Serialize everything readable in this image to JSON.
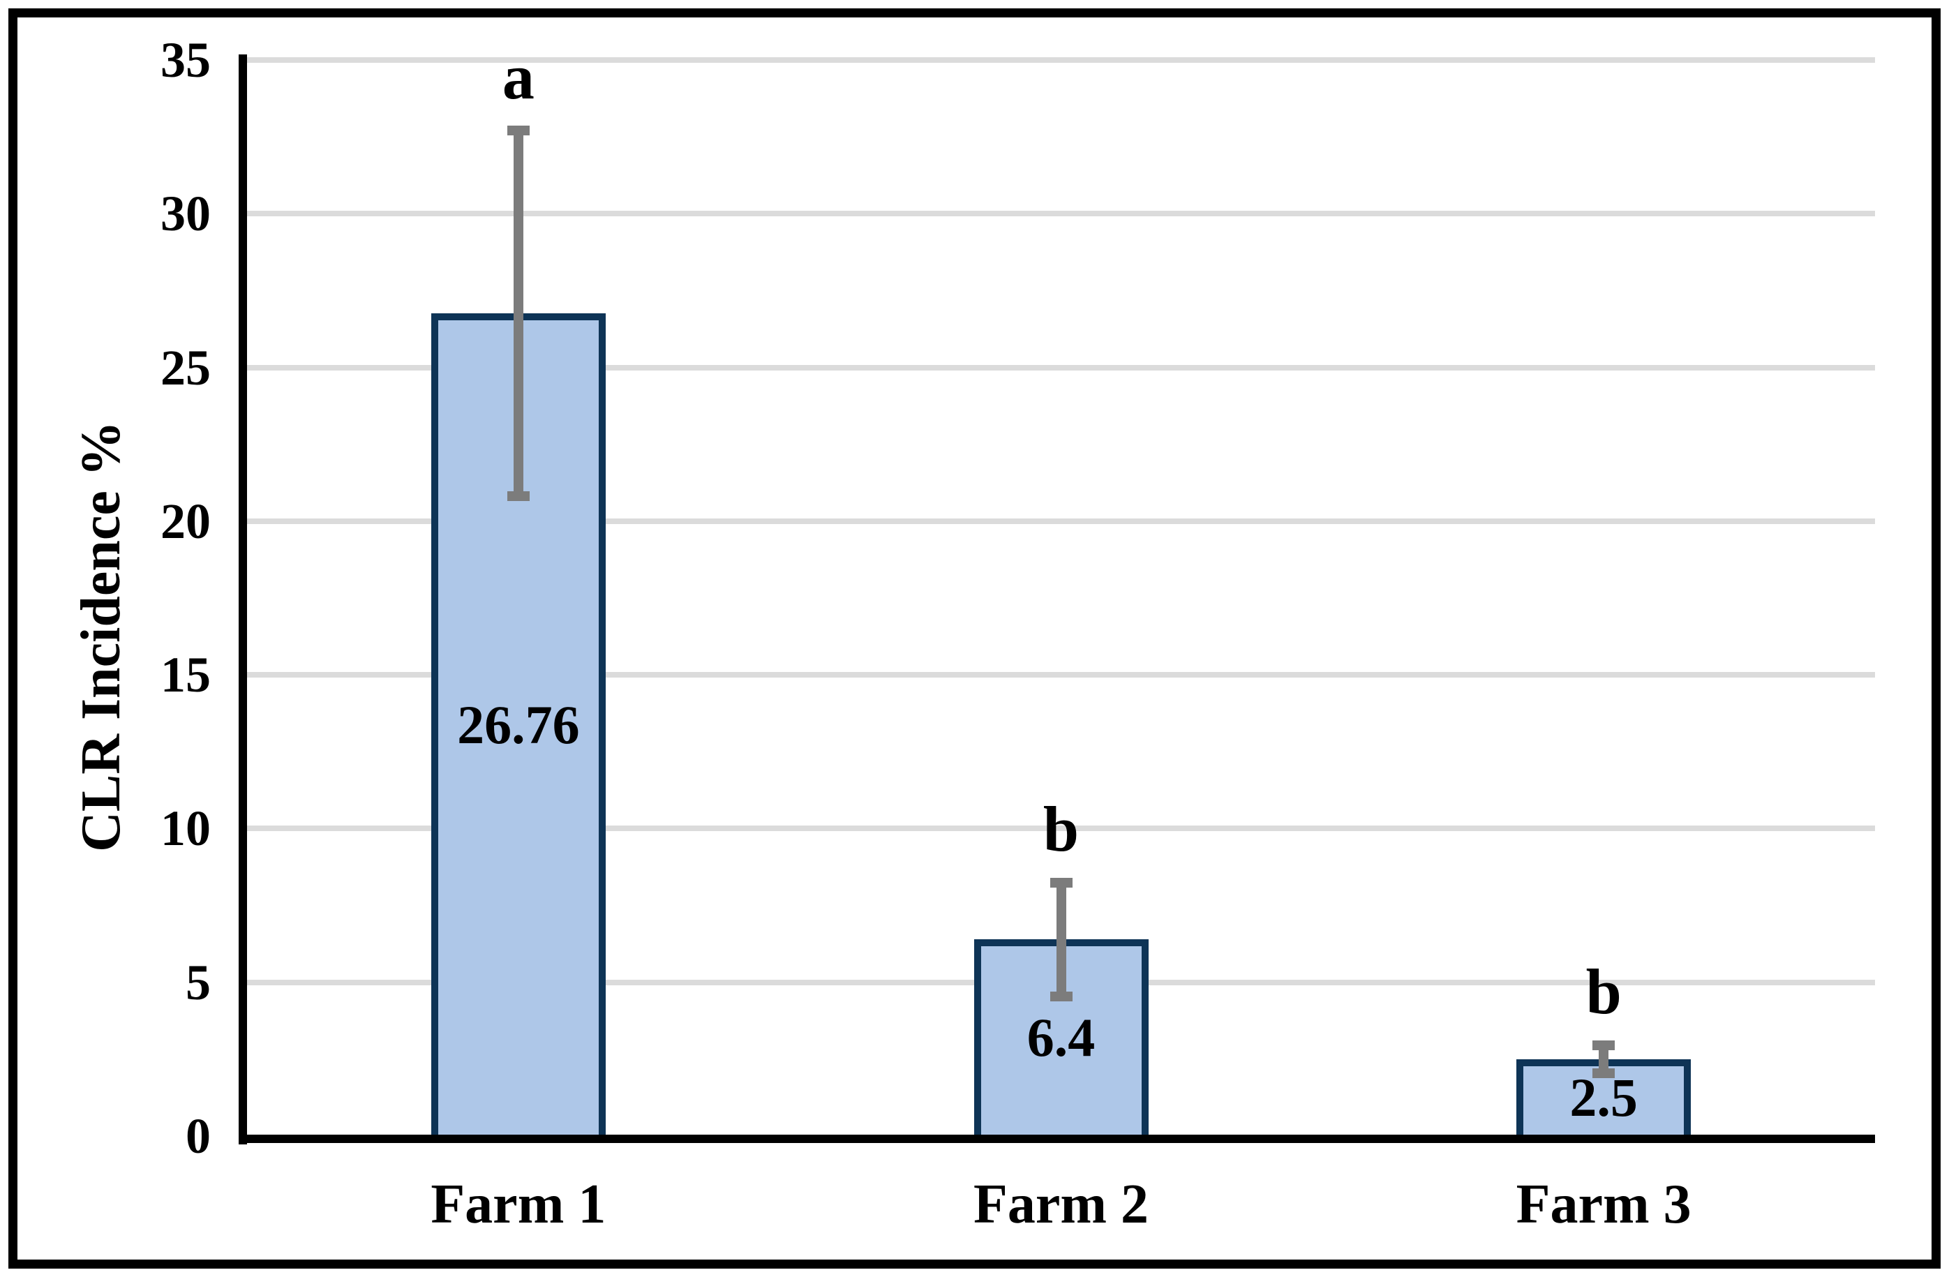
{
  "chart_data": {
    "type": "bar",
    "title": "",
    "ylabel": "CLR Incidence %",
    "xlabel": "",
    "categories": [
      "Farm 1",
      "Farm 2",
      "Farm 3"
    ],
    "values": [
      26.76,
      6.4,
      2.5
    ],
    "value_labels": [
      "26.76",
      "6.4",
      "2.5"
    ],
    "error_bars": [
      5.95,
      1.85,
      0.45
    ],
    "significance_letters": [
      "a",
      "b",
      "b"
    ],
    "ylim": [
      0,
      35
    ],
    "yticks": [
      0,
      5,
      10,
      15,
      20,
      25,
      30,
      35
    ],
    "grid": "horizontal",
    "legend_position": "none",
    "colors": {
      "bar_fill": "#AEC7E8",
      "bar_border": "#0E3456",
      "error_bar": "#7C7C7C",
      "gridline": "#DBDBDB",
      "axis": "#000000",
      "text": "#000000",
      "frame": "#000000",
      "background": "#FFFFFF"
    }
  }
}
